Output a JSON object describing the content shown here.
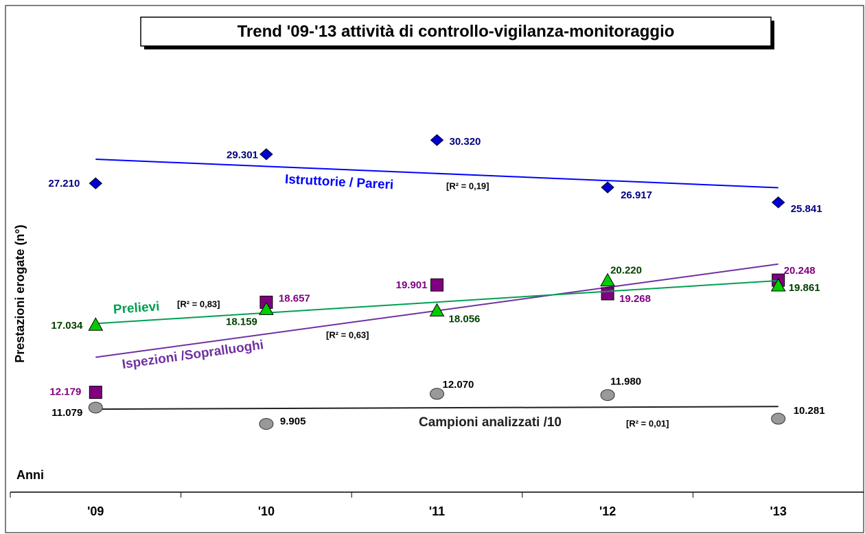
{
  "chart_data": {
    "type": "scatter",
    "title": "Trend '09-'13 attività di controllo-vigilanza-monitoraggio",
    "y_label": "Prestazioni erogate  (n°)",
    "x_label": "Anni",
    "categories": [
      "'09",
      "'10",
      "'11",
      "'12",
      "'13"
    ],
    "ylim": [
      5000,
      40000
    ],
    "trendline": true,
    "series": [
      {
        "name": "Istruttorie / Pareri",
        "r2_label": "[R² = 0,19]",
        "color": "#0000cc",
        "label_color": "#000080",
        "line_color": "#0000ff",
        "marker": "diamond",
        "values": [
          27210,
          29301,
          30320,
          26917,
          25841
        ],
        "value_labels": [
          "27.210",
          "29.301",
          "30.320",
          "26.917",
          "25.841"
        ]
      },
      {
        "name": "Ispezioni /Sopralluoghi",
        "r2_label": "[R² = 0,63]",
        "color": "#800080",
        "label_color": "#800080",
        "line_color": "#7030a0",
        "marker": "square",
        "values": [
          12179,
          18657,
          19901,
          19268,
          20248
        ],
        "value_labels": [
          "12.179",
          "18.657",
          "19.901",
          "19.268",
          "20.248"
        ]
      },
      {
        "name": "Prelievi",
        "r2_label": "[R² = 0,83]",
        "color": "#00cc00",
        "label_color": "#004000",
        "line_color": "#00a050",
        "marker": "triangle",
        "values": [
          17034,
          18159,
          18056,
          20220,
          19861
        ],
        "value_labels": [
          "17.034",
          "18.159",
          "18.056",
          "20.220",
          "19.861"
        ]
      },
      {
        "name": "Campioni analizzati /10",
        "r2_label": "[R² = 0,01]",
        "color": "#999999",
        "label_color": "#000000",
        "line_color": "#202020",
        "marker": "circle",
        "values": [
          11079,
          9905,
          12070,
          11980,
          10281
        ],
        "value_labels": [
          "11.079",
          "9.905",
          "12.070",
          "11.980",
          "10.281"
        ]
      }
    ]
  }
}
